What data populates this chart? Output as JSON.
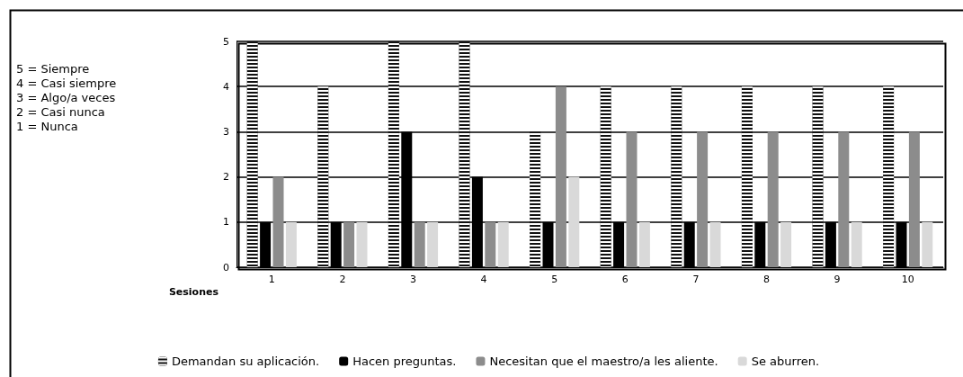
{
  "chart_data": {
    "type": "bar",
    "xlabel": "Sesiones",
    "categories": [
      "1",
      "2",
      "3",
      "4",
      "5",
      "6",
      "7",
      "8",
      "9",
      "10"
    ],
    "series": [
      {
        "name": "Demandan su aplicación.",
        "color": "#111111",
        "values": [
          5,
          4,
          5,
          5,
          3,
          4,
          4,
          4,
          4,
          4
        ]
      },
      {
        "name": "Hacen preguntas.",
        "color": "#000000",
        "values": [
          1,
          1,
          3,
          2,
          1,
          1,
          1,
          1,
          1,
          1
        ]
      },
      {
        "name": "Necesitan que el maestro/a les aliente.",
        "color": "#8c8c8c",
        "values": [
          2,
          1,
          1,
          1,
          4,
          3,
          3,
          3,
          3,
          3
        ]
      },
      {
        "name": "Se aburren.",
        "color": "#d9d9d9",
        "values": [
          1,
          1,
          1,
          1,
          2,
          1,
          1,
          1,
          1,
          1
        ]
      }
    ],
    "ylim": [
      0,
      5
    ],
    "yticks": [
      0,
      1,
      2,
      3,
      4,
      5
    ],
    "grid": "y",
    "legend": "bottom",
    "annotations": [
      "5 = Siempre",
      "4 = Casi siempre",
      "3 = Algo/a veces",
      "2 = Casi nunca",
      "1 = Nunca"
    ]
  }
}
